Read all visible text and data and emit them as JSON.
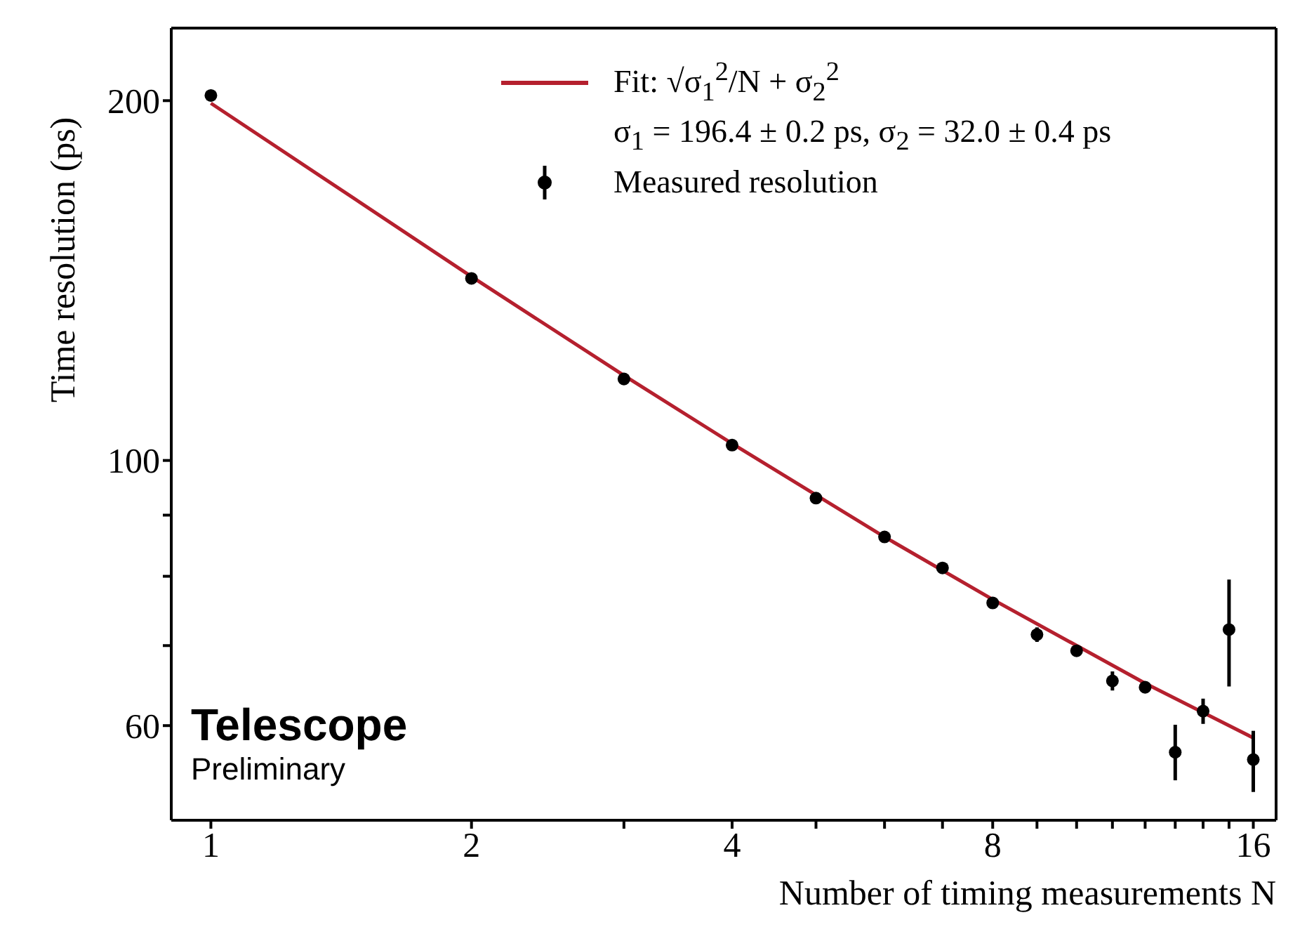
{
  "chart_data": {
    "type": "scatter",
    "xlabel": "Number of timing measurements N",
    "ylabel": "Time resolution (ps)",
    "log": "xy",
    "legend": "top",
    "xlim": [
      0.9,
      17
    ],
    "xticks": [
      1,
      2,
      {
        "value": 3,
        "label": null
      },
      4,
      {
        "value": 5,
        "label": null
      },
      {
        "value": 6,
        "label": null
      },
      {
        "value": 7,
        "label": null
      },
      8,
      {
        "value": 9,
        "label": null
      },
      {
        "value": 10,
        "label": null
      },
      {
        "value": 11,
        "label": null
      },
      {
        "value": 12,
        "label": null
      },
      {
        "value": 13,
        "label": null
      },
      {
        "value": 14,
        "label": null
      },
      {
        "value": 15,
        "label": null
      },
      16
    ],
    "ylim": [
      50,
      230
    ],
    "yticks": [
      60,
      {
        "value": 70,
        "label": null
      },
      {
        "value": 80,
        "label": null
      },
      {
        "value": 90,
        "label": null
      },
      100,
      200
    ],
    "series": [
      {
        "name": "Fit: √σ$_{1}$$^{2}$/N + σ$_{2}$$^{2}$",
        "type": "line",
        "line_style": "solid",
        "marker": "none",
        "color": "#b5202e",
        "x": [
          1,
          2,
          3,
          4,
          6,
          8,
          12,
          16
        ],
        "values": [
          199.0,
          142.5,
          117.8,
          103.3,
          86.3,
          76.5,
          65.1,
          58.6
        ]
      },
      {
        "name": "Measured resolution",
        "marker": "circle",
        "color": "#000000",
        "x": [
          1,
          2,
          3,
          4,
          5,
          6,
          7,
          8,
          9,
          10,
          11,
          12,
          13,
          14,
          15,
          16
        ],
        "values": [
          202,
          142,
          117,
          103,
          93,
          86.3,
          81.3,
          76,
          71.5,
          69.3,
          65.4,
          64.6,
          57,
          61.7,
          72.2,
          56.2
        ],
        "errors": [
          2,
          null,
          null,
          null,
          null,
          null,
          null,
          null,
          1,
          null,
          1.2,
          null,
          [
            54,
            60.1
          ],
          1.5,
          [
            64.7,
            79.5
          ],
          [
            52.8,
            59.4
          ]
        ]
      }
    ],
    "annotations": [
      "σ$_{1}$ = 196.4 ± 0.2 ps, σ$_{2}$ = 32.0 ± 0.4 ps",
      "Telescope",
      "Preliminary"
    ]
  }
}
